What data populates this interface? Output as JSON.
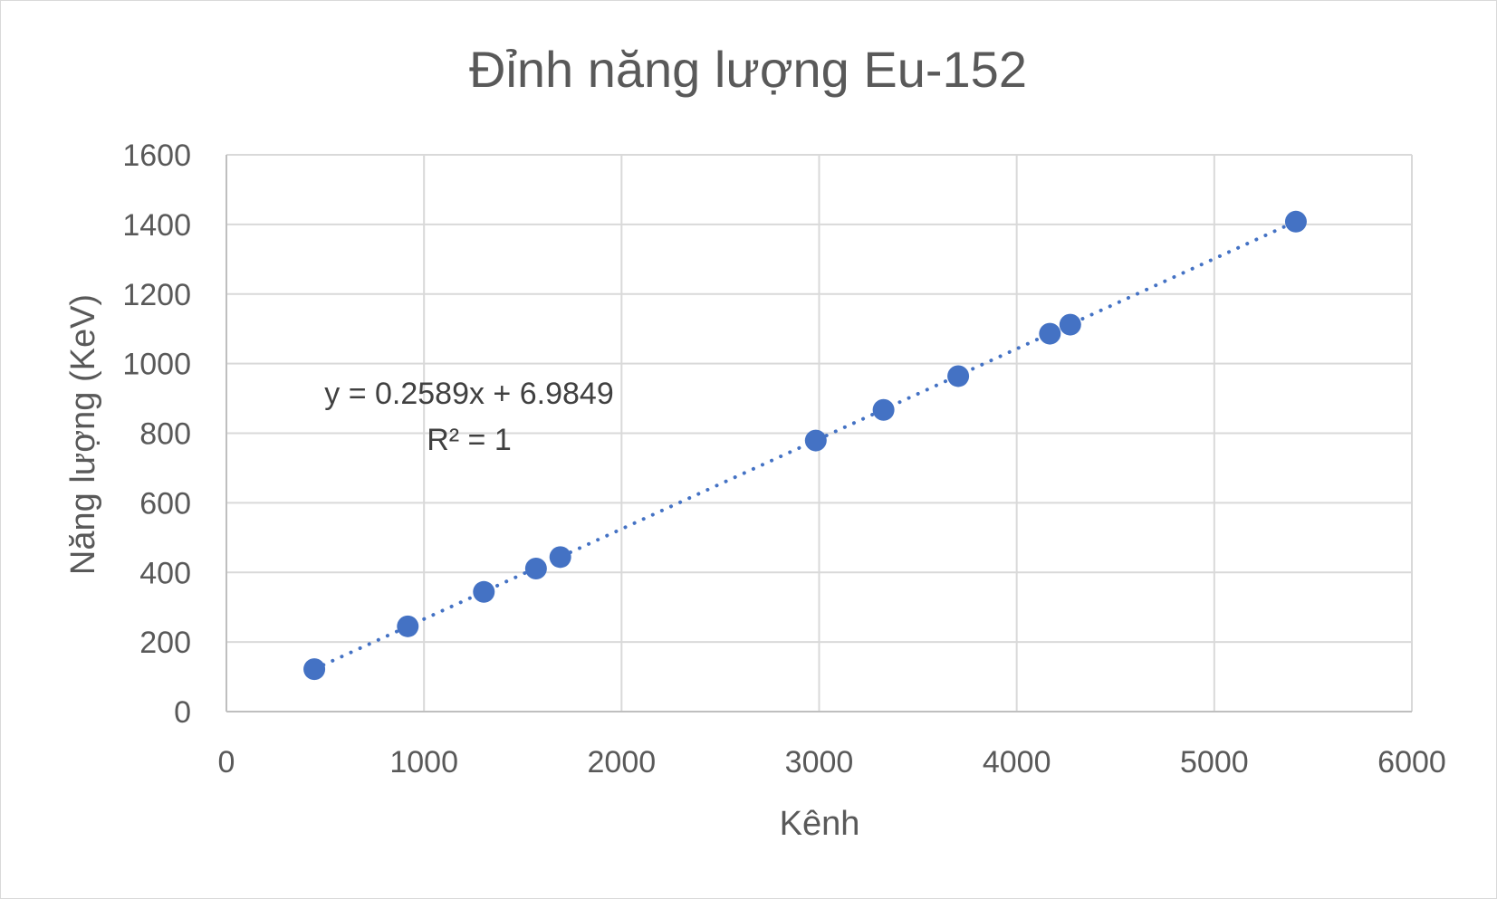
{
  "chart_data": {
    "type": "scatter",
    "title": "Đỉnh năng lượng Eu-152",
    "xlabel": "Kênh",
    "ylabel": "Năng lượng (KeV)",
    "xlim": [
      0,
      6000
    ],
    "ylim": [
      0,
      1600
    ],
    "x_ticks": [
      "0",
      "1000",
      "2000",
      "3000",
      "4000",
      "5000",
      "6000"
    ],
    "y_ticks": [
      "0",
      "200",
      "400",
      "600",
      "800",
      "1000",
      "1200",
      "1400",
      "1600"
    ],
    "grid": true,
    "series": [
      {
        "x": [
          445,
          918,
          1303,
          1567,
          1690,
          2983,
          3326,
          3704,
          4168,
          4271,
          5413
        ],
        "y": [
          122,
          245,
          344,
          411,
          444,
          779,
          867,
          964,
          1086,
          1112,
          1408
        ]
      }
    ],
    "trendline": {
      "type": "linear",
      "slope": 0.2589,
      "intercept": 6.9849,
      "x_range": [
        445,
        5413
      ],
      "equation_label": "y = 0.2589x + 6.9849",
      "r2_label": "R² = 1"
    },
    "colors": {
      "points": "#4472c4",
      "trendline": "#4472c4",
      "grid": "#d9d9d9",
      "text": "#595959"
    }
  }
}
